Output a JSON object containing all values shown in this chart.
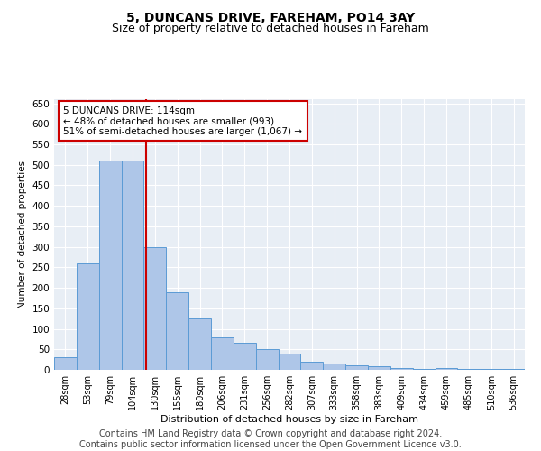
{
  "title": "5, DUNCANS DRIVE, FAREHAM, PO14 3AY",
  "subtitle": "Size of property relative to detached houses in Fareham",
  "xlabel": "Distribution of detached houses by size in Fareham",
  "ylabel": "Number of detached properties",
  "categories": [
    "28sqm",
    "53sqm",
    "79sqm",
    "104sqm",
    "130sqm",
    "155sqm",
    "180sqm",
    "206sqm",
    "231sqm",
    "256sqm",
    "282sqm",
    "307sqm",
    "333sqm",
    "358sqm",
    "383sqm",
    "409sqm",
    "434sqm",
    "459sqm",
    "485sqm",
    "510sqm",
    "536sqm"
  ],
  "values": [
    30,
    260,
    510,
    510,
    300,
    190,
    125,
    80,
    65,
    50,
    40,
    20,
    15,
    10,
    8,
    5,
    2,
    5,
    2,
    2,
    2
  ],
  "bar_color": "#aec6e8",
  "bar_edge_color": "#5b9bd5",
  "vline_x": 3.6,
  "vline_color": "#cc0000",
  "annotation_text": "5 DUNCANS DRIVE: 114sqm\n← 48% of detached houses are smaller (993)\n51% of semi-detached houses are larger (1,067) →",
  "annotation_box_color": "#cc0000",
  "ylim": [
    0,
    660
  ],
  "yticks": [
    0,
    50,
    100,
    150,
    200,
    250,
    300,
    350,
    400,
    450,
    500,
    550,
    600,
    650
  ],
  "footer": "Contains HM Land Registry data © Crown copyright and database right 2024.\nContains public sector information licensed under the Open Government Licence v3.0.",
  "bg_color": "#e8eef5",
  "fig_bg_color": "#ffffff",
  "grid_color": "#ffffff",
  "title_fontsize": 10,
  "subtitle_fontsize": 9,
  "footer_fontsize": 7
}
